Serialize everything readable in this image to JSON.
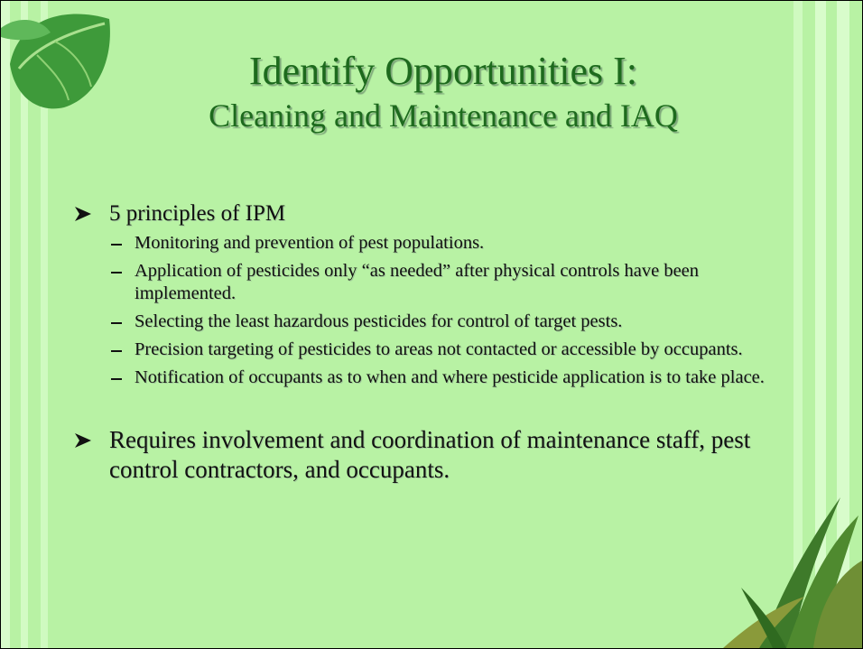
{
  "slide": {
    "title": {
      "line1": "Identify Opportunities I:",
      "line2": "Cleaning and Maintenance and IAQ"
    },
    "bullets": [
      {
        "text": "5 principles of IPM",
        "subitems": [
          "Monitoring and prevention of pest populations.",
          "Application of pesticides only “as needed” after physical controls have been implemented.",
          "Selecting the least hazardous pesticides for control of target pests.",
          "Precision targeting of pesticides to areas not contacted or accessible by occupants.",
          "Notification of occupants as to when and where pesticide application is to take place."
        ]
      },
      {
        "text": "Requires involvement and coordination of maintenance staff, pest control contractors, and occupants.",
        "subitems": []
      }
    ]
  }
}
